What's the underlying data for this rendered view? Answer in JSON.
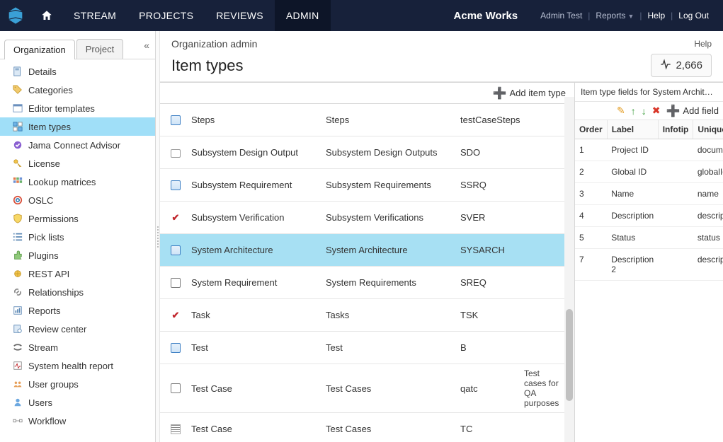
{
  "nav": {
    "items": [
      "STREAM",
      "PROJECTS",
      "REVIEWS",
      "ADMIN"
    ],
    "active_index": 3,
    "org_name": "Acme Works",
    "user_label": "Admin Test",
    "reports_label": "Reports",
    "help_label": "Help",
    "logout_label": "Log Out"
  },
  "left": {
    "tabs": [
      "Organization",
      "Project"
    ],
    "active_tab": 0,
    "items": [
      {
        "label": "Details",
        "icon": "details"
      },
      {
        "label": "Categories",
        "icon": "tag"
      },
      {
        "label": "Editor templates",
        "icon": "template"
      },
      {
        "label": "Item types",
        "icon": "itemtypes",
        "selected": true
      },
      {
        "label": "Jama Connect Advisor",
        "icon": "advisor"
      },
      {
        "label": "License",
        "icon": "key"
      },
      {
        "label": "Lookup matrices",
        "icon": "matrix"
      },
      {
        "label": "OSLC",
        "icon": "oslc"
      },
      {
        "label": "Permissions",
        "icon": "shield"
      },
      {
        "label": "Pick lists",
        "icon": "picklist"
      },
      {
        "label": "Plugins",
        "icon": "plugin"
      },
      {
        "label": "REST API",
        "icon": "api"
      },
      {
        "label": "Relationships",
        "icon": "link"
      },
      {
        "label": "Reports",
        "icon": "reports"
      },
      {
        "label": "Review center",
        "icon": "review"
      },
      {
        "label": "Stream",
        "icon": "stream"
      },
      {
        "label": "System health report",
        "icon": "health"
      },
      {
        "label": "User groups",
        "icon": "groups"
      },
      {
        "label": "Users",
        "icon": "users"
      },
      {
        "label": "Workflow",
        "icon": "workflow"
      }
    ]
  },
  "main": {
    "breadcrumb": "Organization admin",
    "help_label": "Help",
    "title": "Item types",
    "count": "2,666",
    "add_label": "Add item type"
  },
  "itemtypes": [
    {
      "name": "Steps",
      "plural": "Steps",
      "key": "testCaseSteps",
      "desc": "",
      "icon": "blue"
    },
    {
      "name": "Subsystem Design Output",
      "plural": "Subsystem Design Outputs",
      "key": "SDO",
      "desc": "",
      "icon": "folder"
    },
    {
      "name": "Subsystem Requirement",
      "plural": "Subsystem Requirements",
      "key": "SSRQ",
      "desc": "",
      "icon": "blue"
    },
    {
      "name": "Subsystem Verification",
      "plural": "Subsystem Verifications",
      "key": "SVER",
      "desc": "",
      "icon": "check"
    },
    {
      "name": "System Architecture",
      "plural": "System Architecture",
      "key": "SYSARCH",
      "desc": "",
      "icon": "blue",
      "selected": true
    },
    {
      "name": "System Requirement",
      "plural": "System Requirements",
      "key": "SREQ",
      "desc": "",
      "icon": "doc"
    },
    {
      "name": "Task",
      "plural": "Tasks",
      "key": "TSK",
      "desc": "",
      "icon": "check"
    },
    {
      "name": "Test",
      "plural": "Test",
      "key": "B",
      "desc": "",
      "icon": "blue"
    },
    {
      "name": "Test Case",
      "plural": "Test Cases",
      "key": "qatc",
      "desc": "Test cases for QA purposes",
      "icon": "doc"
    },
    {
      "name": "Test Case",
      "plural": "Test Cases",
      "key": "TC",
      "desc": "",
      "icon": "lines"
    }
  ],
  "fields": {
    "title_prefix": "Item type fields for ",
    "title_name": "System Architecture",
    "add_label": "Add field",
    "headers": {
      "order": "Order",
      "label": "Label",
      "infotip": "Infotip",
      "unique": "Unique Field Name"
    },
    "rows": [
      {
        "order": "1",
        "label": "Project ID",
        "infotip": "",
        "unique": "documentK"
      },
      {
        "order": "2",
        "label": "Global ID",
        "infotip": "",
        "unique": "globalId"
      },
      {
        "order": "3",
        "label": "Name",
        "infotip": "",
        "unique": "name"
      },
      {
        "order": "4",
        "label": "Description",
        "infotip": "",
        "unique": "description"
      },
      {
        "order": "5",
        "label": "Status",
        "infotip": "",
        "unique": "status"
      },
      {
        "order": "7",
        "label": "Description 2",
        "infotip": "",
        "unique": "description"
      }
    ]
  },
  "colors": {
    "topnav_bg": "#17213a",
    "selected_bg": "#a0dff8",
    "row_selected_bg": "#a7e0f3",
    "add_green": "#44a12b"
  }
}
